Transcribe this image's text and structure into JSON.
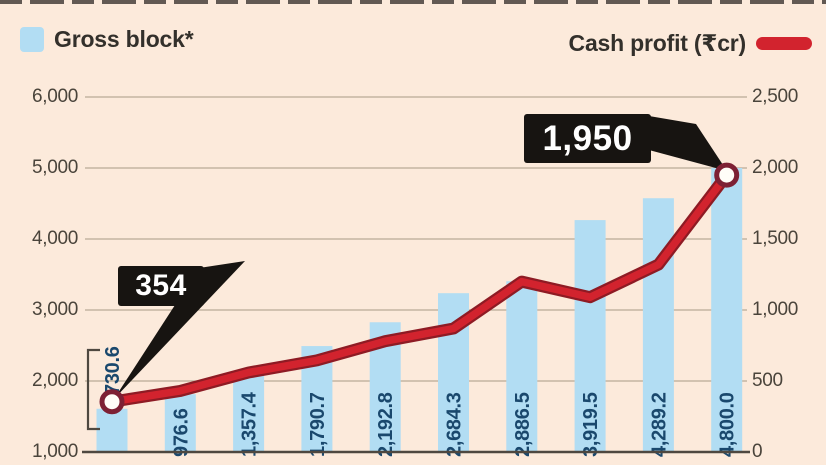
{
  "legend": {
    "gross_block_label": "Gross block*",
    "cash_profit_label": "Cash profit (₹cr)"
  },
  "colors": {
    "background": "#fceadb",
    "bar": "#b2ddf3",
    "bar_label": "#1a486d",
    "line": "#d2232e",
    "line_outline": "#8e1b24",
    "marker_ring": "#7d2034",
    "marker_fill": "#fffdf8",
    "grid": "#b8ab97",
    "axis_line": "#4e4840",
    "axis_text": "#4a443b",
    "callout_bg": "#171411",
    "callout_text": "#ffffff",
    "torn_edge": "#3c3531"
  },
  "chart_data": {
    "type": "bar",
    "title": "",
    "xlabel": "",
    "ylabel": "",
    "grid": true,
    "legend_position": "top",
    "series": [
      {
        "name": "Gross block*",
        "type": "bar",
        "axis": "left",
        "values": [
          730.6,
          976.6,
          1357.4,
          1790.7,
          2192.8,
          2684.3,
          2886.5,
          3919.5,
          4289.2,
          4800.0
        ],
        "value_labels": [
          "730.6",
          "976.6",
          "1,357.4",
          "1,790.7",
          "2,192.8",
          "2,684.3",
          "2,886.5",
          "3,919.5",
          "4,289.2",
          "4,800.0"
        ]
      },
      {
        "name": "Cash profit (₹cr)",
        "type": "line",
        "axis": "right",
        "values": [
          354,
          430,
          560,
          645,
          780,
          870,
          1200,
          1090,
          1320,
          1950
        ]
      }
    ],
    "left_axis": {
      "min": 1000,
      "max": 6000,
      "ticks": [
        "6,000",
        "5,000",
        "4,000",
        "3,000",
        "2,000",
        "1,000"
      ]
    },
    "right_axis": {
      "min": 0,
      "max": 2500,
      "ticks": [
        "2,500",
        "2,000",
        "1,500",
        "1,000",
        "500",
        "0"
      ]
    },
    "annotations": [
      {
        "label": "354",
        "series": "Cash profit (₹cr)",
        "point_index": 0
      },
      {
        "label": "1,950",
        "series": "Cash profit (₹cr)",
        "point_index": 9
      }
    ]
  }
}
